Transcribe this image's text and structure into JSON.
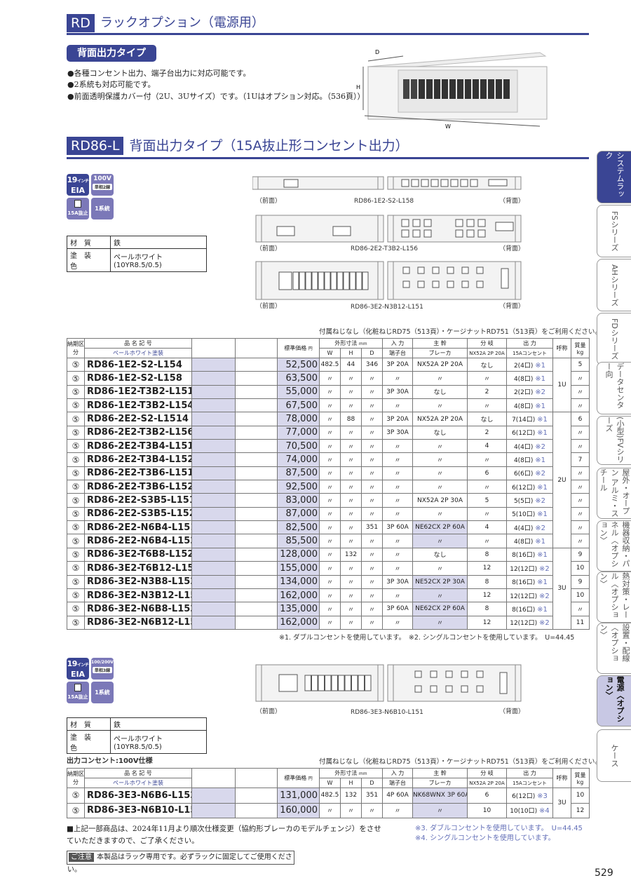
{
  "header": {
    "code": "RD",
    "title": "ラックオプション（電源用）"
  },
  "type_label": "背面出力タイプ",
  "bullets": [
    "●各種コンセント出力、端子台出力に対応可能です。",
    "●2系統も対応可能です。",
    "●前面透明保護カバー付（2U、3Uサイズ）です。（1Uはオプション対応。（536頁））"
  ],
  "photo_dims": {
    "d": "D",
    "h": "H",
    "w": "W"
  },
  "section": {
    "code": "RD86-L",
    "title": "背面出力タイプ（15A抜止形コンセント出力）"
  },
  "badges1": {
    "size": "19",
    "size_unit": "インチ",
    "eia": "EIA",
    "voltage": "100V",
    "phase": "単相2線",
    "outlet": "15A抜止",
    "system": "1系統"
  },
  "badges2": {
    "size": "19",
    "size_unit": "インチ",
    "eia": "EIA",
    "voltage": "100/200V",
    "phase": "単相3線",
    "outlet": "15A抜止",
    "system": "1系統"
  },
  "spec": {
    "material_label": "材質",
    "material": "鉄",
    "paint_label": "塗装色",
    "paint": "ペールホワイト(10YR8.5/0.5)"
  },
  "drawings": {
    "front": "（前面）",
    "back": "（背面）",
    "d1": "RD86-1E2-S2-L158",
    "d2": "RD86-2E2-T3B2-L156",
    "d3": "RD86-3E2-N3B12-L151",
    "d4": "RD86-3E3-N6B10-L151"
  },
  "screw_note": "付属ねじなし（化粧ねじRD75（513頁）・ケージナットRD751（513頁）をご利用ください。）",
  "table_head": {
    "lead": "納期区分",
    "model": "品 名 記 号",
    "model_sub": "ペールホワイト塗装",
    "price": "標準価格",
    "price_unit": "円",
    "dims": "外形寸法",
    "dims_unit": "mm",
    "w": "W",
    "h": "H",
    "d": "D",
    "input": "入 力",
    "input_sub": "端子台",
    "main": "主 幹",
    "main_sub": "ブレーカ",
    "branch": "分 岐",
    "branch_sub": "NX52A 2P 20A",
    "output": "出 力",
    "output_sub": "15Aコンセント",
    "size": "呼称",
    "weight": "質量",
    "weight_unit": "kg"
  },
  "main_table": {
    "groups": [
      {
        "label": "1U",
        "rows": 4
      },
      {
        "label": "2U",
        "rows": 10
      },
      {
        "label": "3U",
        "rows": 6
      }
    ],
    "rows": [
      {
        "lead": "⑤",
        "model": "RD86-1E2-S2-L154",
        "price": "52,500",
        "w": "482.5",
        "h": "44",
        "d": "346",
        "input": "3P 20A",
        "main": "NX52A 2P 20A",
        "branch": "なし",
        "output": "2(4口)",
        "note": "※1",
        "weight": "5"
      },
      {
        "lead": "⑤",
        "model": "RD86-1E2-S2-L158",
        "price": "63,500",
        "w": "〃",
        "h": "〃",
        "d": "〃",
        "input": "〃",
        "main": "〃",
        "branch": "〃",
        "output": "4(8口)",
        "note": "※1",
        "weight": "〃"
      },
      {
        "lead": "⑤",
        "model": "RD86-1E2-T3B2-L151",
        "price": "55,000",
        "w": "〃",
        "h": "〃",
        "d": "〃",
        "input": "3P 30A",
        "main": "なし",
        "branch": "2",
        "output": "2(2口)",
        "note": "※2",
        "weight": "〃"
      },
      {
        "lead": "⑤",
        "model": "RD86-1E2-T3B2-L154",
        "price": "67,500",
        "w": "〃",
        "h": "〃",
        "d": "〃",
        "input": "〃",
        "main": "〃",
        "branch": "〃",
        "output": "4(8口)",
        "note": "※1",
        "weight": "〃"
      },
      {
        "lead": "⑤",
        "model": "RD86-2E2-S2-L1514",
        "price": "78,000",
        "w": "〃",
        "h": "88",
        "d": "〃",
        "input": "3P 20A",
        "main": "NX52A 2P 20A",
        "branch": "なし",
        "output": "7(14口)",
        "note": "※1",
        "weight": "6"
      },
      {
        "lead": "⑤",
        "model": "RD86-2E2-T3B2-L156",
        "price": "77,000",
        "w": "〃",
        "h": "〃",
        "d": "〃",
        "input": "3P 30A",
        "main": "なし",
        "branch": "2",
        "output": "6(12口)",
        "note": "※1",
        "weight": "〃"
      },
      {
        "lead": "⑤",
        "model": "RD86-2E2-T3B4-L151",
        "price": "70,500",
        "w": "〃",
        "h": "〃",
        "d": "〃",
        "input": "〃",
        "main": "〃",
        "branch": "4",
        "output": "4(4口)",
        "note": "※2",
        "weight": "〃"
      },
      {
        "lead": "⑤",
        "model": "RD86-2E2-T3B4-L152",
        "price": "74,000",
        "w": "〃",
        "h": "〃",
        "d": "〃",
        "input": "〃",
        "main": "〃",
        "branch": "〃",
        "output": "4(8口)",
        "note": "※1",
        "weight": "7"
      },
      {
        "lead": "⑤",
        "model": "RD86-2E2-T3B6-L151",
        "price": "87,500",
        "w": "〃",
        "h": "〃",
        "d": "〃",
        "input": "〃",
        "main": "〃",
        "branch": "6",
        "output": "6(6口)",
        "note": "※2",
        "weight": "〃"
      },
      {
        "lead": "⑤",
        "model": "RD86-2E2-T3B6-L152",
        "price": "92,500",
        "w": "〃",
        "h": "〃",
        "d": "〃",
        "input": "〃",
        "main": "〃",
        "branch": "〃",
        "output": "6(12口)",
        "note": "※1",
        "weight": "〃"
      },
      {
        "lead": "⑤",
        "model": "RD86-2E2-S3B5-L151",
        "price": "83,000",
        "w": "〃",
        "h": "〃",
        "d": "〃",
        "input": "〃",
        "main": "NX52A 2P 30A",
        "branch": "5",
        "output": "5(5口)",
        "note": "※2",
        "weight": "〃"
      },
      {
        "lead": "⑤",
        "model": "RD86-2E2-S3B5-L152",
        "price": "87,000",
        "w": "〃",
        "h": "〃",
        "d": "〃",
        "input": "〃",
        "main": "〃",
        "branch": "〃",
        "output": "5(10口)",
        "note": "※1",
        "weight": "〃"
      },
      {
        "lead": "⑤",
        "model": "RD86-2E2-N6B4-L151",
        "price": "82,500",
        "w": "〃",
        "h": "〃",
        "d": "351",
        "input": "3P 60A",
        "main": "NE62CX 2P 60A",
        "main_hl": true,
        "branch": "4",
        "output": "4(4口)",
        "note": "※2",
        "weight": "〃"
      },
      {
        "lead": "⑤",
        "model": "RD86-2E2-N6B4-L152",
        "price": "85,500",
        "w": "〃",
        "h": "〃",
        "d": "〃",
        "input": "〃",
        "main": "〃",
        "main_hl": true,
        "branch": "〃",
        "output": "4(8口)",
        "note": "※1",
        "weight": "〃"
      },
      {
        "lead": "⑤",
        "model": "RD86-3E2-T6B8-L152",
        "price": "128,000",
        "w": "〃",
        "h": "132",
        "d": "〃",
        "input": "〃",
        "main": "なし",
        "branch": "8",
        "output": "8(16口)",
        "note": "※1",
        "weight": "9"
      },
      {
        "lead": "⑤",
        "model": "RD86-3E2-T6B12-L151",
        "price": "155,000",
        "w": "〃",
        "h": "〃",
        "d": "〃",
        "input": "〃",
        "main": "〃",
        "branch": "12",
        "output": "12(12口)",
        "note": "※2",
        "weight": "10"
      },
      {
        "lead": "⑤",
        "model": "RD86-3E2-N3B8-L152",
        "price": "134,000",
        "w": "〃",
        "h": "〃",
        "d": "〃",
        "input": "3P 30A",
        "main": "NE52CX 2P 30A",
        "main_hl": true,
        "branch": "8",
        "output": "8(16口)",
        "note": "※1",
        "weight": "9"
      },
      {
        "lead": "⑤",
        "model": "RD86-3E2-N3B12-L151",
        "price": "162,000",
        "w": "〃",
        "h": "〃",
        "d": "〃",
        "input": "〃",
        "main": "〃",
        "main_hl": true,
        "branch": "12",
        "output": "12(12口)",
        "note": "※2",
        "weight": "10"
      },
      {
        "lead": "⑤",
        "model": "RD86-3E2-N6B8-L152",
        "price": "135,000",
        "w": "〃",
        "h": "〃",
        "d": "〃",
        "input": "3P 60A",
        "main": "NE62CX 2P 60A",
        "main_hl": true,
        "branch": "8",
        "output": "8(16口)",
        "note": "※1",
        "weight": "〃"
      },
      {
        "lead": "⑤",
        "model": "RD86-3E2-N6B12-L151",
        "price": "162,000",
        "w": "〃",
        "h": "〃",
        "d": "〃",
        "input": "〃",
        "main": "〃",
        "main_hl": true,
        "branch": "12",
        "output": "12(12口)",
        "note": "※2",
        "weight": "11"
      }
    ]
  },
  "footnote1": "※1. ダブルコンセントを使用しています。　※2. シングルコンセントを使用しています。　U=44.45",
  "sub_label": "出力コンセント:100V仕様",
  "table2": {
    "groups": [
      {
        "label": "3U",
        "rows": 2
      }
    ],
    "rows": [
      {
        "lead": "⑤",
        "model": "RD86-3E3-N6B6-L152",
        "price": "131,000",
        "w": "482.5",
        "h": "132",
        "d": "351",
        "input": "4P 60A",
        "main": "NK68WNX 3P 60A",
        "main_hl": true,
        "branch": "6",
        "output": "6(12口)",
        "note": "※3",
        "weight": "10"
      },
      {
        "lead": "⑤",
        "model": "RD86-3E3-N6B10-L151",
        "price": "160,000",
        "w": "〃",
        "h": "〃",
        "d": "〃",
        "input": "〃",
        "main": "〃",
        "main_hl": true,
        "branch": "10",
        "output": "10(10口)",
        "note": "※4",
        "weight": "12"
      }
    ]
  },
  "footnote3": "※3. ダブルコンセントを使用しています。　U=44.45",
  "footnote4": "※4. シングルコンセントを使用しています。",
  "change_note": "■上記一部商品は、2024年11月より順次仕様変更（協約形ブレーカのモデルチェンジ）をさせ　ていただきますので、ご了承ください。",
  "caution_label": "ご注意",
  "caution_text": "本製品はラック専用です。必ずラックに固定してご使用ください。",
  "side_tabs": [
    "システムラック",
    "FSシリーズ",
    "AHシリーズ",
    "FDシリーズ",
    "データセンター向",
    "(小型)FVシリーズ",
    "屋外・オープン アルミ・スチール",
    "機器収納・パネル〈オプション〉",
    "熱対策・レール〈オプション〉",
    "設置・配線〈オプション〉",
    "電源〈オプション〉",
    "ケース"
  ],
  "page_number": "529",
  "colors": {
    "brand": "#3a4594",
    "shade": "#d8d8ec",
    "note": "#6470b8"
  }
}
